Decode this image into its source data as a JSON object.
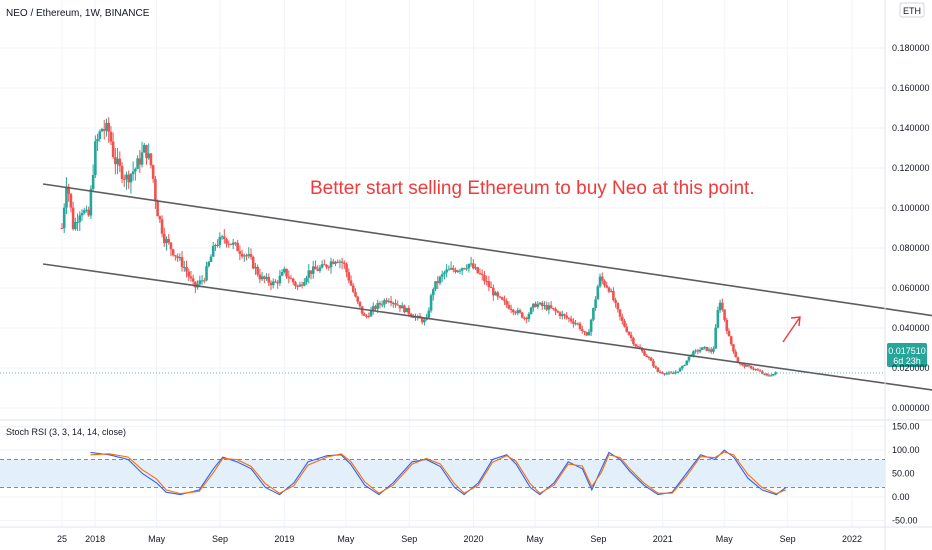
{
  "header": {
    "symbol_title": "NEO / Ethereum, 1W, BINANCE",
    "currency_label": "ETH"
  },
  "colors": {
    "up": "#26a69a",
    "down": "#ef5350",
    "channel": "#5d5d5d",
    "annotation": "#ef3b3b",
    "rsi_k": "#2962ff",
    "rsi_d": "#ff6d00",
    "rsi_band": "#e3f0fb",
    "price_badge": "#26a69a"
  },
  "price_badge": {
    "value": "0.017510",
    "countdown": "6d 23h"
  },
  "annotation": {
    "text": "Better start selling Ethereum to buy Neo at this point.",
    "arrow": "red-up-right-arrow"
  },
  "x_axis": {
    "ticks": [
      {
        "label": "25",
        "t": 0.0
      },
      {
        "label": "2018",
        "t": 0.35
      },
      {
        "label": "May",
        "t": 1.0
      },
      {
        "label": "Sep",
        "t": 1.67
      },
      {
        "label": "2019",
        "t": 2.35
      },
      {
        "label": "May",
        "t": 3.0
      },
      {
        "label": "Sep",
        "t": 3.67
      },
      {
        "label": "2020",
        "t": 4.35
      },
      {
        "label": "May",
        "t": 5.0
      },
      {
        "label": "Sep",
        "t": 5.67
      },
      {
        "label": "2021",
        "t": 6.35
      },
      {
        "label": "May",
        "t": 7.0
      },
      {
        "label": "Sep",
        "t": 7.67
      },
      {
        "label": "2022",
        "t": 8.35
      }
    ]
  },
  "chart_data": [
    {
      "type": "candlestick",
      "title": "NEO / Ethereum, 1W, BINANCE",
      "y_axis_ticks": [
        "0.180000",
        "0.160000",
        "0.140000",
        "0.120000",
        "0.100000",
        "0.080000",
        "0.060000",
        "0.040000",
        "0.020000",
        "0.000000"
      ],
      "ylim": [
        -0.005,
        0.2
      ],
      "last_price": 0.01751,
      "price_points": [
        [
          0.0,
          0.09
        ],
        [
          0.05,
          0.115
        ],
        [
          0.12,
          0.09
        ],
        [
          0.2,
          0.1
        ],
        [
          0.28,
          0.095
        ],
        [
          0.35,
          0.13
        ],
        [
          0.42,
          0.14
        ],
        [
          0.5,
          0.138
        ],
        [
          0.55,
          0.125
        ],
        [
          0.6,
          0.12
        ],
        [
          0.68,
          0.115
        ],
        [
          0.78,
          0.12
        ],
        [
          0.88,
          0.13
        ],
        [
          0.95,
          0.12
        ],
        [
          1.0,
          0.1
        ],
        [
          1.08,
          0.085
        ],
        [
          1.18,
          0.078
        ],
        [
          1.3,
          0.07
        ],
        [
          1.4,
          0.06
        ],
        [
          1.5,
          0.065
        ],
        [
          1.62,
          0.082
        ],
        [
          1.72,
          0.085
        ],
        [
          1.85,
          0.08
        ],
        [
          1.98,
          0.075
        ],
        [
          2.1,
          0.065
        ],
        [
          2.25,
          0.062
        ],
        [
          2.35,
          0.068
        ],
        [
          2.5,
          0.06
        ],
        [
          2.6,
          0.068
        ],
        [
          2.75,
          0.07
        ],
        [
          2.9,
          0.075
        ],
        [
          2.98,
          0.072
        ],
        [
          3.1,
          0.055
        ],
        [
          3.2,
          0.045
        ],
        [
          3.3,
          0.05
        ],
        [
          3.45,
          0.055
        ],
        [
          3.6,
          0.05
        ],
        [
          3.75,
          0.045
        ],
        [
          3.85,
          0.043
        ],
        [
          3.92,
          0.06
        ],
        [
          4.05,
          0.068
        ],
        [
          4.2,
          0.07
        ],
        [
          4.3,
          0.072
        ],
        [
          4.45,
          0.065
        ],
        [
          4.6,
          0.055
        ],
        [
          4.75,
          0.05
        ],
        [
          4.9,
          0.045
        ],
        [
          5.0,
          0.052
        ],
        [
          5.15,
          0.05
        ],
        [
          5.3,
          0.046
        ],
        [
          5.45,
          0.042
        ],
        [
          5.55,
          0.035
        ],
        [
          5.62,
          0.05
        ],
        [
          5.68,
          0.065
        ],
        [
          5.78,
          0.06
        ],
        [
          5.9,
          0.045
        ],
        [
          6.05,
          0.032
        ],
        [
          6.2,
          0.025
        ],
        [
          6.3,
          0.018
        ],
        [
          6.45,
          0.017
        ],
        [
          6.55,
          0.02
        ],
        [
          6.65,
          0.027
        ],
        [
          6.78,
          0.03
        ],
        [
          6.88,
          0.028
        ],
        [
          6.95,
          0.055
        ],
        [
          7.05,
          0.035
        ],
        [
          7.15,
          0.022
        ],
        [
          7.3,
          0.02
        ],
        [
          7.45,
          0.016
        ],
        [
          7.55,
          0.0175
        ]
      ],
      "channel_lines": [
        {
          "name": "upper",
          "from": [
            -0.2,
            0.112
          ],
          "to": [
            9.8,
            0.042
          ]
        },
        {
          "name": "lower",
          "from": [
            -0.2,
            0.072
          ],
          "to": [
            9.8,
            0.005
          ]
        }
      ]
    },
    {
      "type": "line",
      "title": "Stoch RSI (3, 3, 14, 14, close)",
      "y_axis_ticks": [
        "150.00",
        "100.00",
        "50.00",
        "0.00",
        "-50.00"
      ],
      "ylim": [
        -60,
        160
      ],
      "band": [
        20,
        80
      ],
      "series": [
        {
          "points": [
            [
              0.3,
              95
            ],
            [
              0.5,
              90
            ],
            [
              0.7,
              80
            ],
            [
              0.85,
              50
            ],
            [
              1.0,
              30
            ],
            [
              1.1,
              10
            ],
            [
              1.25,
              5
            ],
            [
              1.45,
              15
            ],
            [
              1.6,
              60
            ],
            [
              1.7,
              85
            ],
            [
              1.85,
              75
            ],
            [
              2.0,
              60
            ],
            [
              2.15,
              20
            ],
            [
              2.3,
              5
            ],
            [
              2.45,
              30
            ],
            [
              2.6,
              75
            ],
            [
              2.8,
              88
            ],
            [
              2.95,
              90
            ],
            [
              3.05,
              70
            ],
            [
              3.2,
              25
            ],
            [
              3.35,
              5
            ],
            [
              3.5,
              30
            ],
            [
              3.7,
              75
            ],
            [
              3.85,
              80
            ],
            [
              4.0,
              65
            ],
            [
              4.15,
              20
            ],
            [
              4.25,
              5
            ],
            [
              4.4,
              30
            ],
            [
              4.55,
              80
            ],
            [
              4.7,
              90
            ],
            [
              4.8,
              70
            ],
            [
              4.95,
              20
            ],
            [
              5.05,
              5
            ],
            [
              5.2,
              30
            ],
            [
              5.35,
              75
            ],
            [
              5.5,
              60
            ],
            [
              5.6,
              15
            ],
            [
              5.7,
              60
            ],
            [
              5.78,
              95
            ],
            [
              5.9,
              80
            ],
            [
              6.0,
              55
            ],
            [
              6.15,
              25
            ],
            [
              6.3,
              5
            ],
            [
              6.45,
              10
            ],
            [
              6.6,
              50
            ],
            [
              6.75,
              90
            ],
            [
              6.9,
              80
            ],
            [
              7.0,
              100
            ],
            [
              7.1,
              85
            ],
            [
              7.25,
              40
            ],
            [
              7.4,
              15
            ],
            [
              7.55,
              5
            ],
            [
              7.65,
              20
            ]
          ]
        },
        {
          "points": [
            [
              0.3,
              90
            ],
            [
              0.5,
              92
            ],
            [
              0.7,
              85
            ],
            [
              0.85,
              58
            ],
            [
              1.0,
              38
            ],
            [
              1.1,
              15
            ],
            [
              1.25,
              7
            ],
            [
              1.45,
              12
            ],
            [
              1.6,
              52
            ],
            [
              1.7,
              82
            ],
            [
              1.85,
              80
            ],
            [
              2.0,
              65
            ],
            [
              2.15,
              28
            ],
            [
              2.3,
              8
            ],
            [
              2.45,
              24
            ],
            [
              2.6,
              68
            ],
            [
              2.8,
              85
            ],
            [
              2.95,
              92
            ],
            [
              3.05,
              76
            ],
            [
              3.2,
              32
            ],
            [
              3.35,
              8
            ],
            [
              3.5,
              25
            ],
            [
              3.7,
              70
            ],
            [
              3.85,
              82
            ],
            [
              4.0,
              70
            ],
            [
              4.15,
              28
            ],
            [
              4.25,
              8
            ],
            [
              4.4,
              25
            ],
            [
              4.55,
              74
            ],
            [
              4.7,
              88
            ],
            [
              4.8,
              76
            ],
            [
              4.95,
              28
            ],
            [
              5.05,
              8
            ],
            [
              5.2,
              25
            ],
            [
              5.35,
              70
            ],
            [
              5.5,
              66
            ],
            [
              5.6,
              22
            ],
            [
              5.7,
              52
            ],
            [
              5.78,
              90
            ],
            [
              5.9,
              84
            ],
            [
              6.0,
              60
            ],
            [
              6.15,
              30
            ],
            [
              6.3,
              8
            ],
            [
              6.45,
              8
            ],
            [
              6.6,
              44
            ],
            [
              6.75,
              86
            ],
            [
              6.9,
              84
            ],
            [
              7.0,
              96
            ],
            [
              7.1,
              90
            ],
            [
              7.25,
              48
            ],
            [
              7.4,
              20
            ],
            [
              7.55,
              7
            ],
            [
              7.65,
              15
            ]
          ]
        }
      ]
    }
  ]
}
